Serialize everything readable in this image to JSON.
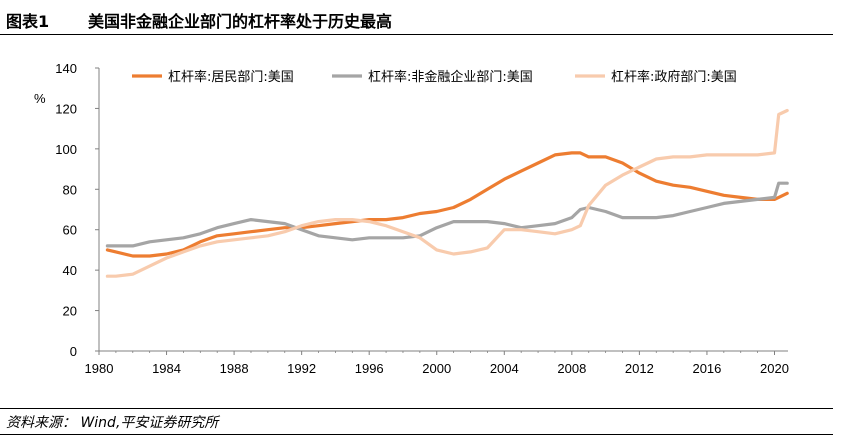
{
  "figure": {
    "number": "图表1",
    "title": "美国非金融企业部门的杠杆率处于历史最高",
    "source": "资料来源： Wind,平安证券研究所"
  },
  "chart_data": {
    "type": "line",
    "ylabel": "%",
    "xlim": [
      1980,
      2021
    ],
    "ylim": [
      0,
      140
    ],
    "x_ticks": [
      "1980",
      "1984",
      "1988",
      "1992",
      "1996",
      "2000",
      "2004",
      "2008",
      "2012",
      "2016",
      "2020"
    ],
    "y_ticks": [
      "0",
      "20",
      "40",
      "60",
      "80",
      "100",
      "120",
      "140"
    ],
    "grid": false,
    "legend_position": "top",
    "series": [
      {
        "name": "杠杆率:居民部门:美国",
        "color": "#ED7D31",
        "x": [
          1980.5,
          1981,
          1982,
          1983,
          1984,
          1985,
          1986,
          1987,
          1988,
          1989,
          1990,
          1991,
          1992,
          1993,
          1994,
          1995,
          1996,
          1997,
          1998,
          1999,
          2000,
          2001,
          2002,
          2003,
          2004,
          2005,
          2006,
          2007,
          2008,
          2008.5,
          2009,
          2010,
          2011,
          2012,
          2013,
          2014,
          2015,
          2016,
          2017,
          2018,
          2019,
          2020,
          2020.25,
          2020.75
        ],
        "y": [
          50,
          49,
          47,
          47,
          48,
          50,
          54,
          57,
          58,
          59,
          60,
          61,
          61,
          62,
          63,
          64,
          65,
          65,
          66,
          68,
          69,
          71,
          75,
          80,
          85,
          89,
          93,
          97,
          98,
          98,
          96,
          96,
          93,
          88,
          84,
          82,
          81,
          79,
          77,
          76,
          75,
          75,
          76,
          78
        ]
      },
      {
        "name": "杠杆率:非金融企业部门:美国",
        "color": "#A5A5A5",
        "x": [
          1980.5,
          1981,
          1982,
          1983,
          1984,
          1985,
          1986,
          1987,
          1988,
          1989,
          1990,
          1991,
          1992,
          1993,
          1994,
          1995,
          1996,
          1997,
          1998,
          1999,
          2000,
          2001,
          2002,
          2003,
          2004,
          2005,
          2006,
          2007,
          2008,
          2008.5,
          2009,
          2010,
          2011,
          2012,
          2013,
          2014,
          2015,
          2016,
          2017,
          2018,
          2019,
          2020,
          2020.25,
          2020.75
        ],
        "y": [
          52,
          52,
          52,
          54,
          55,
          56,
          58,
          61,
          63,
          65,
          64,
          63,
          60,
          57,
          56,
          55,
          56,
          56,
          56,
          57,
          61,
          64,
          64,
          64,
          63,
          61,
          62,
          63,
          66,
          70,
          71,
          69,
          66,
          66,
          66,
          67,
          69,
          71,
          73,
          74,
          75,
          76,
          83,
          83
        ]
      },
      {
        "name": "杠杆率:政府部门:美国",
        "color": "#F8CBAD",
        "x": [
          1980.5,
          1981,
          1982,
          1983,
          1984,
          1985,
          1986,
          1987,
          1988,
          1989,
          1990,
          1991,
          1992,
          1993,
          1994,
          1995,
          1996,
          1997,
          1998,
          1999,
          2000,
          2001,
          2002,
          2003,
          2004,
          2005,
          2006,
          2007,
          2008,
          2008.5,
          2009,
          2010,
          2011,
          2012,
          2013,
          2014,
          2015,
          2016,
          2017,
          2018,
          2019,
          2020,
          2020.25,
          2020.75
        ],
        "y": [
          37,
          37,
          38,
          42,
          46,
          49,
          52,
          54,
          55,
          56,
          57,
          59,
          62,
          64,
          65,
          65,
          64,
          62,
          59,
          56,
          50,
          48,
          49,
          51,
          60,
          60,
          59,
          58,
          60,
          62,
          72,
          82,
          87,
          91,
          95,
          96,
          96,
          97,
          97,
          97,
          97,
          98,
          117,
          119
        ]
      }
    ]
  }
}
